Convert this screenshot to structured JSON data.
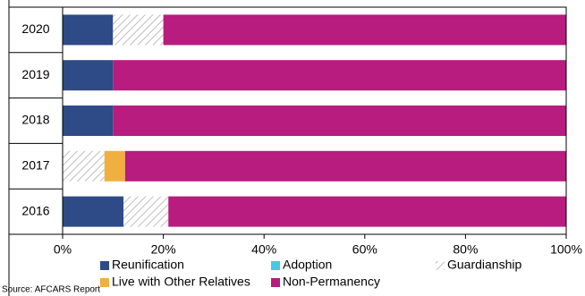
{
  "chart_data": {
    "type": "stacked-barh",
    "categories": [
      "2020",
      "2019",
      "2018",
      "2017",
      "2016"
    ],
    "series": [
      {
        "name": "Reunification",
        "color": "#2e4a87",
        "values": [
          10,
          10,
          10,
          0,
          12.1
        ]
      },
      {
        "name": "Adoption",
        "color": "#4fc3e8",
        "values": [
          0,
          0,
          0,
          0,
          0
        ]
      },
      {
        "name": "Guardianship",
        "color": "#c8c8c8",
        "pattern": "hatch",
        "values": [
          10,
          0,
          0,
          8.3,
          8.9
        ]
      },
      {
        "name": "Live with Other Relatives",
        "color": "#f0b040",
        "values": [
          0,
          0,
          0,
          4.1,
          0
        ]
      },
      {
        "name": "Non-Permanency",
        "color": "#b81c7e",
        "values": [
          80,
          90,
          90,
          87.6,
          79
        ]
      }
    ],
    "xlim": [
      0,
      100
    ],
    "xticks": [
      {
        "value": 0,
        "label": "0%"
      },
      {
        "value": 20,
        "label": "20%"
      },
      {
        "value": 40,
        "label": "40%"
      },
      {
        "value": 60,
        "label": "60%"
      },
      {
        "value": 80,
        "label": "80%"
      },
      {
        "value": 100,
        "label": "100%"
      }
    ],
    "source": "Source: AFCARS Report"
  }
}
